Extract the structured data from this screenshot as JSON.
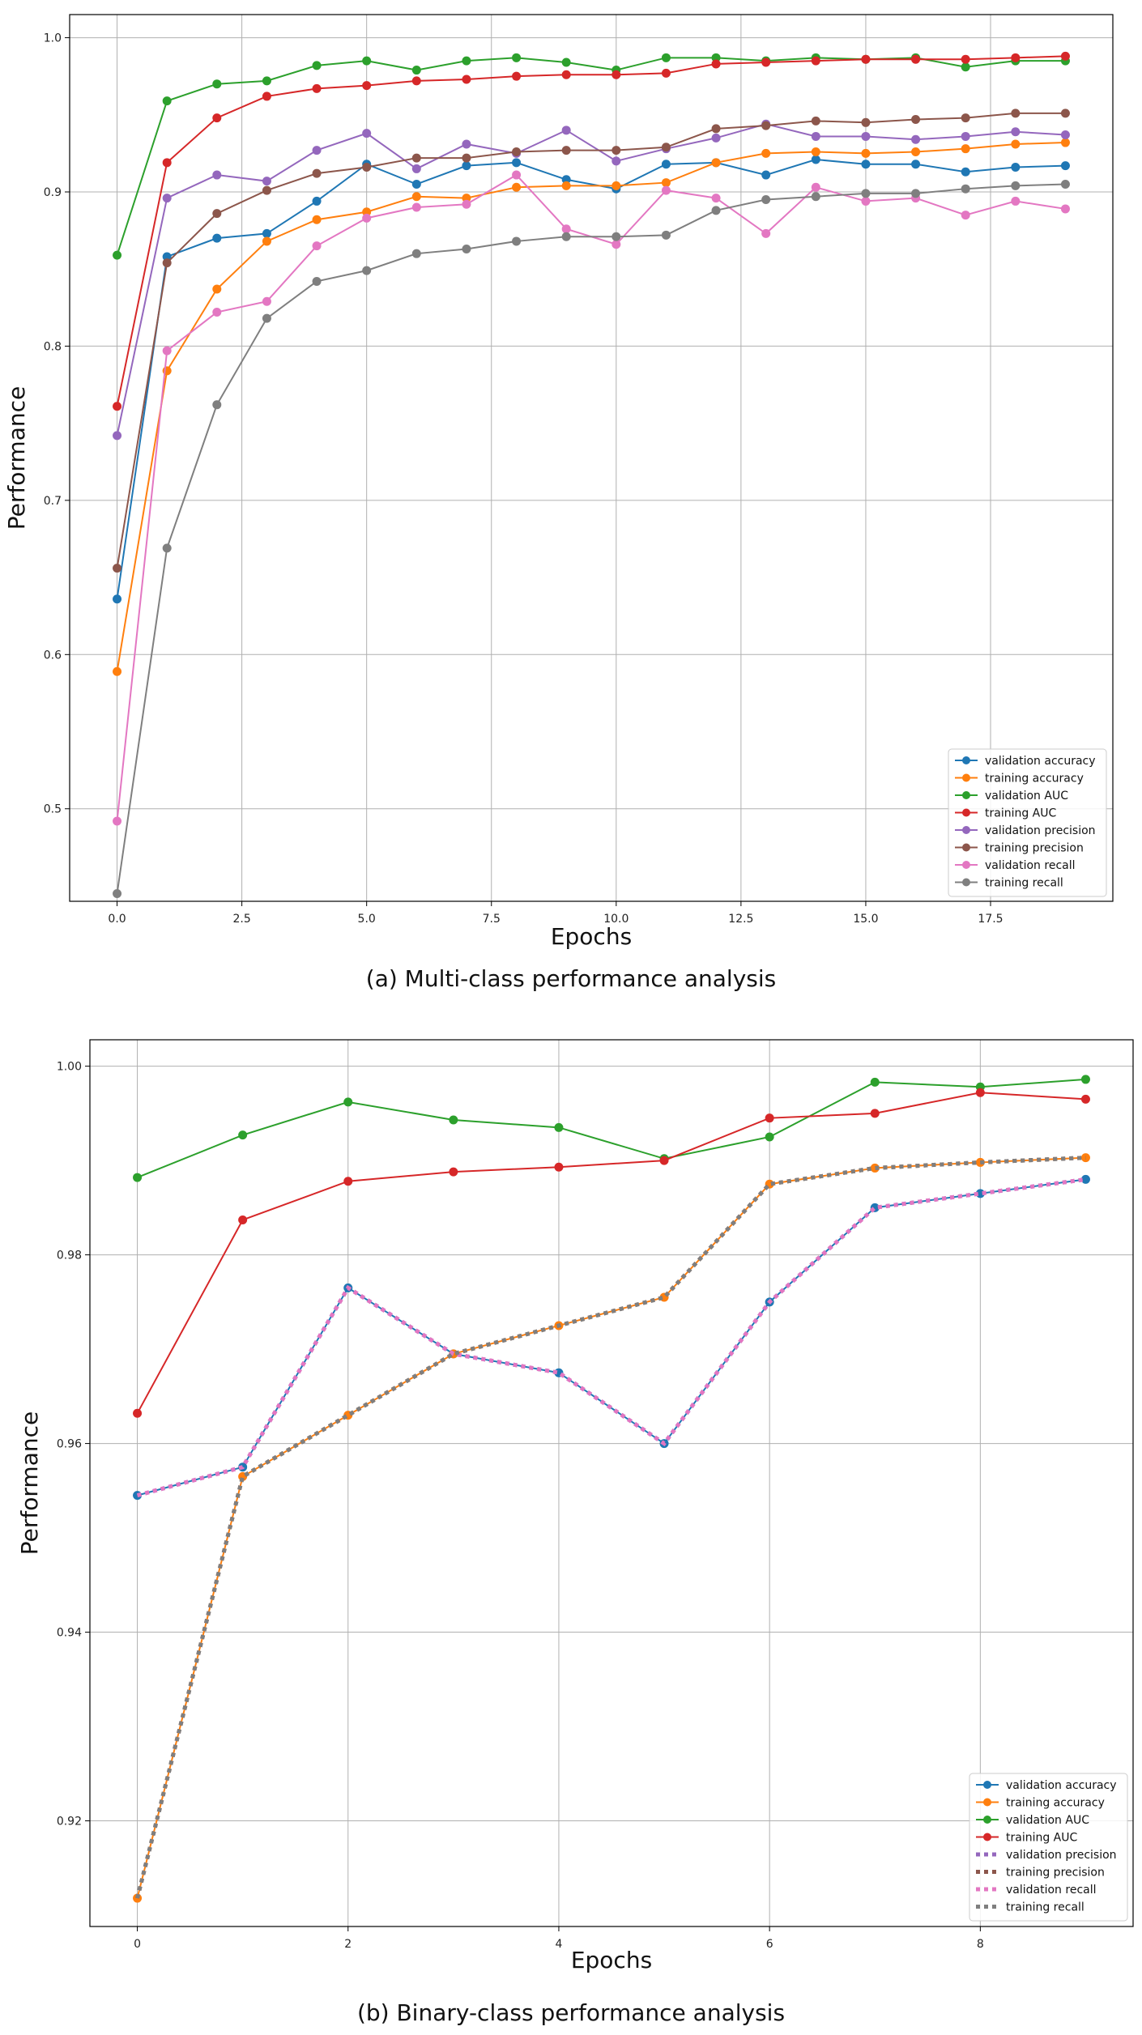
{
  "charts": [
    {
      "caption": "(a) Multi-class performance analysis",
      "type": "line",
      "xlabel": "Epochs",
      "ylabel": "Performance",
      "xlim": [
        -0.95,
        19.95
      ],
      "ylim": [
        0.44,
        1.015
      ],
      "xticks": [
        0,
        2.5,
        5,
        7.5,
        10,
        12.5,
        15,
        17.5
      ],
      "xtick_labels": [
        "0.0",
        "2.5",
        "5.0",
        "7.5",
        "10.0",
        "12.5",
        "15.0",
        "17.5"
      ],
      "yticks": [
        0.5,
        0.6,
        0.7,
        0.8,
        0.9,
        1.0
      ],
      "ytick_labels": [
        "0.5",
        "0.6",
        "0.7",
        "0.8",
        "0.9",
        "1.0"
      ],
      "grid": true,
      "legend_position": "lower-right",
      "x": [
        0,
        1,
        2,
        3,
        4,
        5,
        6,
        7,
        8,
        9,
        10,
        11,
        12,
        13,
        14,
        15,
        16,
        17,
        18,
        19
      ],
      "series": [
        {
          "name": "validation accuracy",
          "color": "#1f77b4",
          "style": "solid",
          "values": [
            0.636,
            0.858,
            0.87,
            0.873,
            0.894,
            0.918,
            0.905,
            0.917,
            0.919,
            0.908,
            0.902,
            0.918,
            0.919,
            0.911,
            0.921,
            0.918,
            0.918,
            0.913,
            0.916,
            0.917
          ]
        },
        {
          "name": "training accuracy",
          "color": "#ff7f0e",
          "style": "solid",
          "values": [
            0.589,
            0.784,
            0.837,
            0.868,
            0.882,
            0.887,
            0.897,
            0.896,
            0.903,
            0.904,
            0.904,
            0.906,
            0.919,
            0.925,
            0.926,
            0.925,
            0.926,
            0.928,
            0.931,
            0.932
          ]
        },
        {
          "name": "validation AUC",
          "color": "#2ca02c",
          "style": "solid",
          "values": [
            0.859,
            0.959,
            0.97,
            0.972,
            0.982,
            0.985,
            0.979,
            0.985,
            0.987,
            0.984,
            0.979,
            0.987,
            0.987,
            0.985,
            0.987,
            0.986,
            0.987,
            0.981,
            0.985,
            0.985
          ]
        },
        {
          "name": "training AUC",
          "color": "#d62728",
          "style": "solid",
          "values": [
            0.761,
            0.919,
            0.948,
            0.962,
            0.967,
            0.969,
            0.972,
            0.973,
            0.975,
            0.976,
            0.976,
            0.977,
            0.983,
            0.984,
            0.985,
            0.986,
            0.986,
            0.986,
            0.987,
            0.988
          ]
        },
        {
          "name": "validation precision",
          "color": "#9467bd",
          "style": "solid",
          "values": [
            0.742,
            0.896,
            0.911,
            0.907,
            0.927,
            0.938,
            0.915,
            0.931,
            0.925,
            0.94,
            0.92,
            0.928,
            0.935,
            0.944,
            0.936,
            0.936,
            0.934,
            0.936,
            0.939,
            0.937
          ]
        },
        {
          "name": "training precision",
          "color": "#8c564b",
          "style": "solid",
          "values": [
            0.656,
            0.854,
            0.886,
            0.901,
            0.912,
            0.916,
            0.922,
            0.922,
            0.926,
            0.927,
            0.927,
            0.929,
            0.941,
            0.943,
            0.946,
            0.945,
            0.947,
            0.948,
            0.951,
            0.951
          ]
        },
        {
          "name": "validation recall",
          "color": "#e377c2",
          "style": "solid",
          "values": [
            0.492,
            0.797,
            0.822,
            0.829,
            0.865,
            0.883,
            0.89,
            0.892,
            0.911,
            0.876,
            0.866,
            0.901,
            0.896,
            0.873,
            0.903,
            0.894,
            0.896,
            0.885,
            0.894,
            0.889
          ]
        },
        {
          "name": "training recall",
          "color": "#7f7f7f",
          "style": "solid",
          "values": [
            0.445,
            0.669,
            0.762,
            0.818,
            0.842,
            0.849,
            0.86,
            0.863,
            0.868,
            0.871,
            0.871,
            0.872,
            0.888,
            0.895,
            0.897,
            0.899,
            0.899,
            0.902,
            0.904,
            0.905
          ]
        }
      ]
    },
    {
      "caption": "(b) Binary-class performance analysis",
      "type": "line",
      "xlabel": "Epochs",
      "ylabel": "Performance",
      "xlim": [
        -0.45,
        9.45
      ],
      "ylim": [
        0.9088,
        1.0028
      ],
      "xticks": [
        0,
        2,
        4,
        6,
        8
      ],
      "xtick_labels": [
        "0",
        "2",
        "4",
        "6",
        "8"
      ],
      "yticks": [
        0.92,
        0.94,
        0.96,
        0.98,
        1.0
      ],
      "ytick_labels": [
        "0.92",
        "0.94",
        "0.96",
        "0.98",
        "1.00"
      ],
      "grid": true,
      "legend_position": "lower-right",
      "x": [
        0,
        1,
        2,
        3,
        4,
        5,
        6,
        7,
        8,
        9
      ],
      "series": [
        {
          "name": "validation accuracy",
          "color": "#1f77b4",
          "style": "solid",
          "values": [
            0.9545,
            0.9575,
            0.9765,
            0.9695,
            0.9675,
            0.96,
            0.975,
            0.985,
            0.9865,
            0.988
          ]
        },
        {
          "name": "training accuracy",
          "color": "#ff7f0e",
          "style": "solid",
          "values": [
            0.9118,
            0.9565,
            0.963,
            0.9695,
            0.9725,
            0.9755,
            0.9875,
            0.9892,
            0.9898,
            0.9903
          ]
        },
        {
          "name": "validation AUC",
          "color": "#2ca02c",
          "style": "solid",
          "values": [
            0.9882,
            0.9927,
            0.9962,
            0.9943,
            0.9935,
            0.9902,
            0.9925,
            0.9983,
            0.9978,
            0.9986
          ]
        },
        {
          "name": "training AUC",
          "color": "#d62728",
          "style": "solid",
          "values": [
            0.9632,
            0.9837,
            0.9878,
            0.9888,
            0.9893,
            0.99,
            0.9945,
            0.995,
            0.9972,
            0.9965
          ]
        },
        {
          "name": "validation precision",
          "color": "#9467bd",
          "style": "dotted",
          "values": [
            0.9545,
            0.9575,
            0.9765,
            0.9695,
            0.9675,
            0.96,
            0.975,
            0.985,
            0.9865,
            0.988
          ]
        },
        {
          "name": "training precision",
          "color": "#8c564b",
          "style": "dotted",
          "values": [
            0.9118,
            0.9565,
            0.963,
            0.9695,
            0.9725,
            0.9755,
            0.9875,
            0.9892,
            0.9898,
            0.9903
          ]
        },
        {
          "name": "validation recall",
          "color": "#e377c2",
          "style": "dotted",
          "values": [
            0.9545,
            0.9575,
            0.9765,
            0.9695,
            0.9675,
            0.96,
            0.975,
            0.985,
            0.9865,
            0.988
          ]
        },
        {
          "name": "training recall",
          "color": "#7f7f7f",
          "style": "dotted",
          "values": [
            0.9118,
            0.9565,
            0.963,
            0.9695,
            0.9725,
            0.9755,
            0.9875,
            0.9892,
            0.9898,
            0.9903
          ]
        }
      ]
    }
  ]
}
